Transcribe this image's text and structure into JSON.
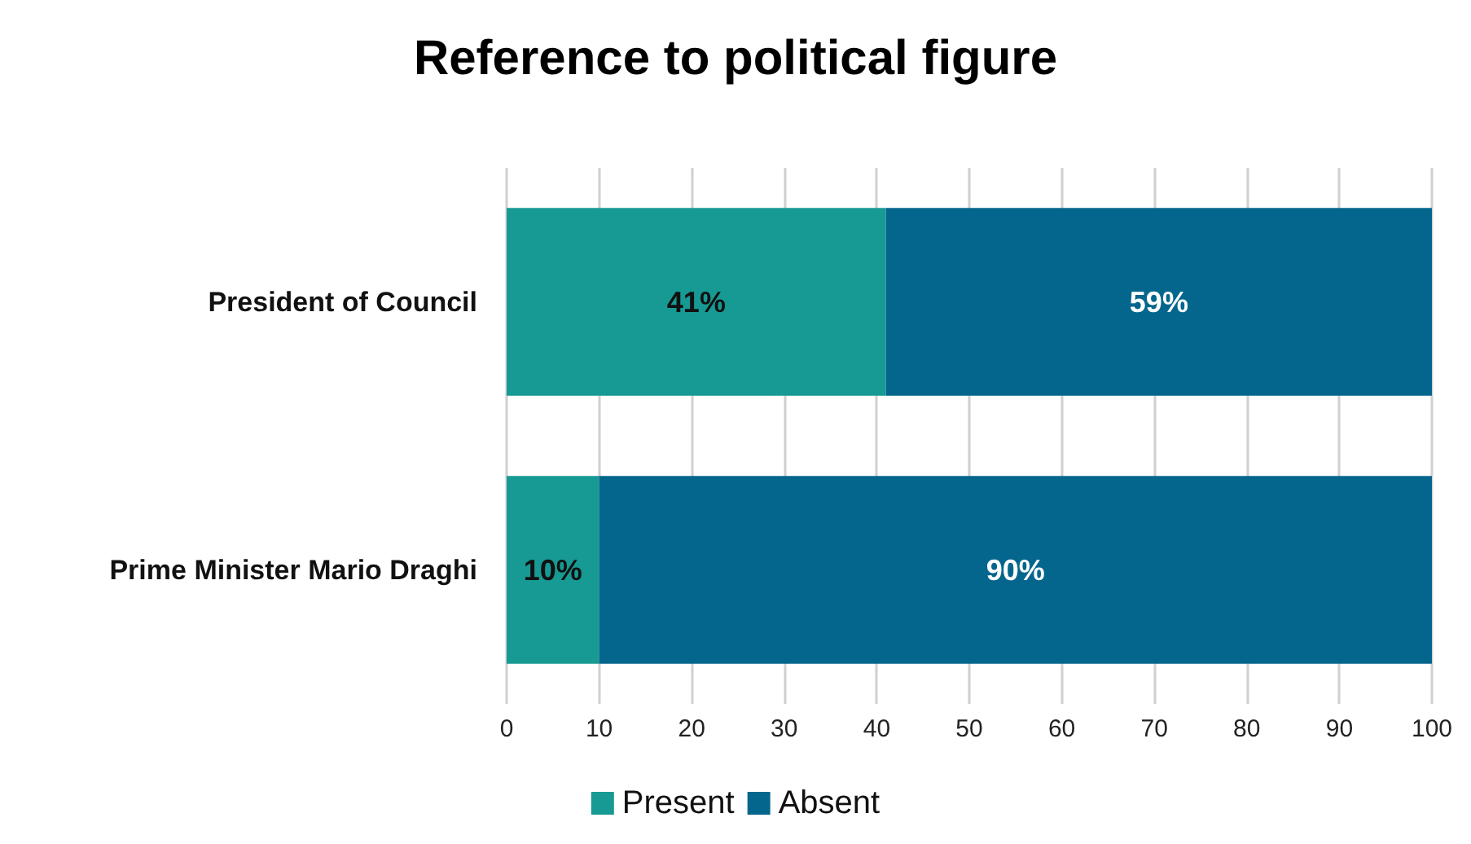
{
  "chart_data": {
    "type": "bar",
    "orientation": "horizontal",
    "stacked": true,
    "title": "Reference to political figure",
    "categories": [
      "President of Council",
      "Prime Minister Mario Draghi"
    ],
    "series": [
      {
        "name": "Present",
        "color": "#179a93",
        "values": [
          41,
          10
        ],
        "value_labels": [
          "41%",
          "10%"
        ]
      },
      {
        "name": "Absent",
        "color": "#05668d",
        "values": [
          59,
          90
        ],
        "value_labels": [
          "59%",
          "90%"
        ]
      }
    ],
    "xlim": [
      0,
      100
    ],
    "xticks": [
      0,
      10,
      20,
      30,
      40,
      50,
      60,
      70,
      80,
      90,
      100
    ],
    "grid": "x",
    "legend": "bottom"
  }
}
